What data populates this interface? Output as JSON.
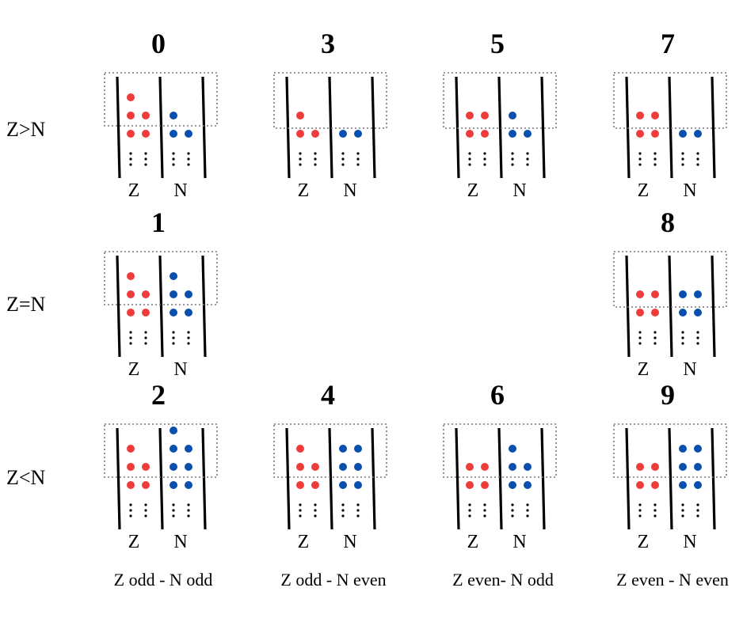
{
  "row_labels": [
    {
      "key": "z_gt_n",
      "text": "Z>N"
    },
    {
      "key": "z_eq_n",
      "text": "Z=N"
    },
    {
      "key": "z_lt_n",
      "text": "Z<N"
    }
  ],
  "column_labels": [
    "Z odd - N odd",
    "Z odd - N even",
    "Z even- N odd",
    "Z even - N even"
  ],
  "proton_label": "Z",
  "neutron_label": "N",
  "colors": {
    "proton": "#ee3b3b",
    "neutron": "#0b4fae"
  },
  "configurations": [
    {
      "number": "0",
      "row": 0,
      "col": 0,
      "proton_top_single": true,
      "proton_pairs": 2,
      "neutron_top_single": true,
      "neutron_pairs": 1
    },
    {
      "number": "3",
      "row": 0,
      "col": 1,
      "proton_top_single": true,
      "proton_pairs": 1,
      "neutron_top_single": false,
      "neutron_pairs": 1
    },
    {
      "number": "5",
      "row": 0,
      "col": 2,
      "proton_top_single": false,
      "proton_pairs": 2,
      "neutron_top_single": true,
      "neutron_pairs": 1
    },
    {
      "number": "7",
      "row": 0,
      "col": 3,
      "proton_top_single": false,
      "proton_pairs": 2,
      "neutron_top_single": false,
      "neutron_pairs": 1
    },
    {
      "number": "1",
      "row": 1,
      "col": 0,
      "proton_top_single": true,
      "proton_pairs": 2,
      "neutron_top_single": true,
      "neutron_pairs": 2
    },
    {
      "number": "8",
      "row": 1,
      "col": 3,
      "proton_top_single": false,
      "proton_pairs": 2,
      "neutron_top_single": false,
      "neutron_pairs": 2
    },
    {
      "number": "2",
      "row": 2,
      "col": 0,
      "proton_top_single": true,
      "proton_pairs": 2,
      "neutron_top_single": true,
      "neutron_pairs": 3
    },
    {
      "number": "4",
      "row": 2,
      "col": 1,
      "proton_top_single": true,
      "proton_pairs": 2,
      "neutron_top_single": false,
      "neutron_pairs": 3
    },
    {
      "number": "6",
      "row": 2,
      "col": 2,
      "proton_top_single": false,
      "proton_pairs": 2,
      "neutron_top_single": true,
      "neutron_pairs": 2
    },
    {
      "number": "9",
      "row": 2,
      "col": 3,
      "proton_top_single": false,
      "proton_pairs": 2,
      "neutron_top_single": false,
      "neutron_pairs": 3
    }
  ]
}
